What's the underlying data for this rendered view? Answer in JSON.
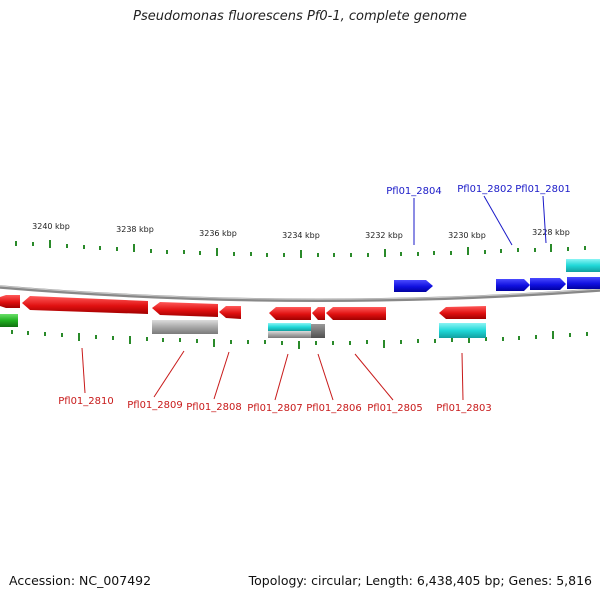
{
  "title": "Pseudomonas fluorescens Pf0-1, complete genome",
  "footer": {
    "accession": "Accession: NC_007492",
    "summary": "Topology: circular; Length: 6,438,405 bp; Genes: 5,816"
  },
  "colors": {
    "forward_gene": "#1010e0",
    "reverse_gene": "#e01010",
    "cyan_feature": "#20d8d8",
    "gray_feature": "#a8a8a8",
    "green_feature": "#20b020",
    "backbone": "#888888",
    "tick": "#2a8a2a",
    "forward_label": "#1a1ac8",
    "reverse_label": "#c81a1a"
  },
  "ruler_labels": [
    "3240 kbp",
    "3238 kbp",
    "3236 kbp",
    "3234 kbp",
    "3232 kbp",
    "3230 kbp",
    "3228 kbp"
  ],
  "forward_gene_labels": [
    "Pfl01_2804",
    "Pfl01_2802",
    "Pfl01_2801"
  ],
  "reverse_gene_labels": [
    "Pfl01_2810",
    "Pfl01_2809",
    "Pfl01_2808",
    "Pfl01_2807",
    "Pfl01_2806",
    "Pfl01_2805",
    "Pfl01_2803"
  ]
}
